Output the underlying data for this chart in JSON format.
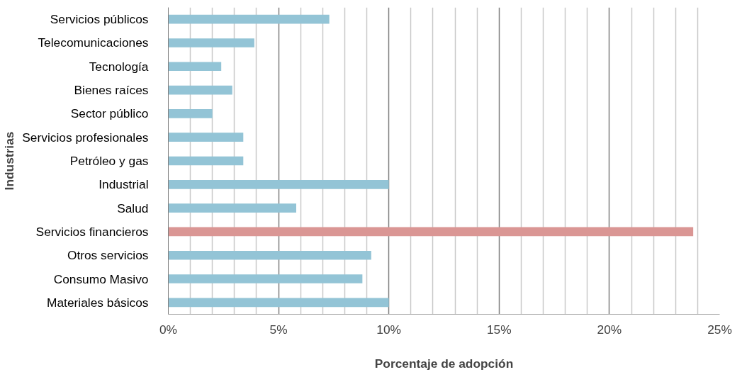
{
  "chart_data": {
    "type": "bar",
    "orientation": "horizontal",
    "xlabel": "Porcentaje de adopción",
    "ylabel": "Industrias",
    "categories": [
      "Servicios públicos",
      "Telecomunicaciones",
      "Tecnología",
      "Bienes raíces",
      "Sector público",
      "Servicios profesionales",
      "Petróleo y gas",
      "Industrial",
      "Salud",
      "Servicios financieros",
      "Otros servicios",
      "Consumo Masivo",
      "Materiales básicos"
    ],
    "values": [
      7.3,
      3.9,
      2.4,
      2.9,
      2.0,
      3.4,
      3.4,
      10.0,
      5.8,
      23.8,
      9.2,
      8.8,
      10.0
    ],
    "colors": [
      "#93c4d6",
      "#93c4d6",
      "#93c4d6",
      "#93c4d6",
      "#93c4d6",
      "#93c4d6",
      "#93c4d6",
      "#93c4d6",
      "#93c4d6",
      "#da9694",
      "#93c4d6",
      "#93c4d6",
      "#93c4d6"
    ],
    "xlim": [
      0,
      25
    ],
    "xticks": [
      {
        "value": 0,
        "label": "0%"
      },
      {
        "value": 1,
        "label": null
      },
      {
        "value": 2,
        "label": null
      },
      {
        "value": 3,
        "label": null
      },
      {
        "value": 4,
        "label": null
      },
      {
        "value": 5,
        "label": "5%"
      },
      {
        "value": 6,
        "label": null
      },
      {
        "value": 7,
        "label": null
      },
      {
        "value": 8,
        "label": null
      },
      {
        "value": 9,
        "label": null
      },
      {
        "value": 10,
        "label": "10%"
      },
      {
        "value": 11,
        "label": null
      },
      {
        "value": 12,
        "label": null
      },
      {
        "value": 13,
        "label": null
      },
      {
        "value": 14,
        "label": null
      },
      {
        "value": 15,
        "label": "15%"
      },
      {
        "value": 16,
        "label": null
      },
      {
        "value": 17,
        "label": null
      },
      {
        "value": 18,
        "label": null
      },
      {
        "value": 19,
        "label": null
      },
      {
        "value": 20,
        "label": "20%"
      },
      {
        "value": 21,
        "label": null
      },
      {
        "value": 22,
        "label": null
      },
      {
        "value": 23,
        "label": null
      },
      {
        "value": 24,
        "label": null
      },
      {
        "value": 25,
        "label": "25%"
      }
    ],
    "grid": "x"
  }
}
